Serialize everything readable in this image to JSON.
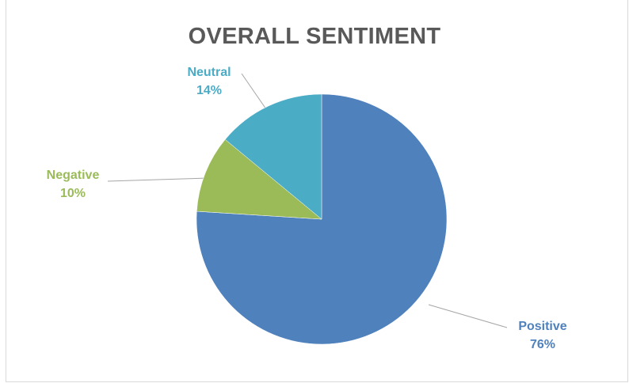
{
  "chart_data": {
    "type": "pie",
    "title": "OVERALL SENTIMENT",
    "slices": [
      {
        "name": "Positive",
        "value": 76,
        "label_value": "76%",
        "color": "#4f81bd"
      },
      {
        "name": "Negative",
        "value": 10,
        "label_value": "10%",
        "color": "#9bbb59"
      },
      {
        "name": "Neutral",
        "value": 14,
        "label_value": "14%",
        "color": "#4bacc6"
      }
    ],
    "label_colors": {
      "Positive": "#4f81bd",
      "Negative": "#9bbb59",
      "Neutral": "#4bacc6"
    },
    "start_angle": "12 o'clock",
    "direction": "clockwise",
    "leader_lines": true
  }
}
